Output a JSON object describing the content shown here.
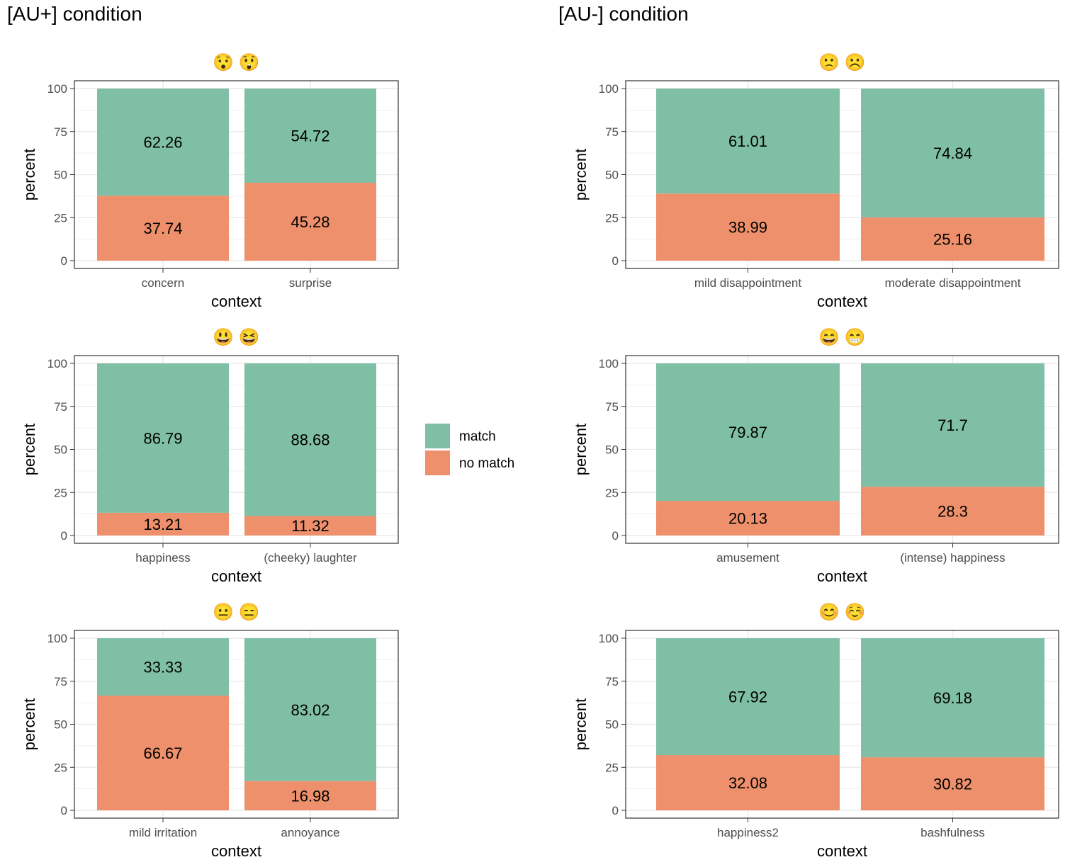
{
  "conditions": [
    {
      "title": "[AU+] condition"
    },
    {
      "title": "[AU-] condition"
    }
  ],
  "legend": {
    "entries": [
      {
        "label": "match",
        "color": "#7fbfa5"
      },
      {
        "label": "no match",
        "color": "#ee906b"
      }
    ]
  },
  "colors": {
    "match": "#7fbfa5",
    "no_match": "#ee906b",
    "grid": "#ebebeb",
    "panel_border": "#333333"
  },
  "chart_data": [
    {
      "type": "bar",
      "stacked": true,
      "condition": "[AU+] condition",
      "emoji_title": "😯 😲",
      "xlabel": "context",
      "ylabel": "percent",
      "ylim": [
        0,
        100
      ],
      "yticks": [
        "0",
        "25",
        "50",
        "75",
        "100"
      ],
      "categories": [
        "concern",
        "surprise"
      ],
      "series": [
        {
          "name": "match",
          "values": [
            62.26,
            54.72
          ]
        },
        {
          "name": "no match",
          "values": [
            37.74,
            45.28
          ]
        }
      ]
    },
    {
      "type": "bar",
      "stacked": true,
      "condition": "[AU-] condition",
      "emoji_title": "🙁 ☹️",
      "xlabel": "context",
      "ylabel": "percent",
      "ylim": [
        0,
        100
      ],
      "yticks": [
        "0",
        "25",
        "50",
        "75",
        "100"
      ],
      "categories": [
        "mild disappointment",
        "moderate disappointment"
      ],
      "series": [
        {
          "name": "match",
          "values": [
            61.01,
            74.84
          ]
        },
        {
          "name": "no match",
          "values": [
            38.99,
            25.16
          ]
        }
      ]
    },
    {
      "type": "bar",
      "stacked": true,
      "condition": "[AU+] condition",
      "emoji_title": "😃 😆",
      "xlabel": "context",
      "ylabel": "percent",
      "ylim": [
        0,
        100
      ],
      "yticks": [
        "0",
        "25",
        "50",
        "75",
        "100"
      ],
      "categories": [
        "happiness",
        "(cheeky) laughter"
      ],
      "series": [
        {
          "name": "match",
          "values": [
            86.79,
            88.68
          ]
        },
        {
          "name": "no match",
          "values": [
            13.21,
            11.32
          ]
        }
      ]
    },
    {
      "type": "bar",
      "stacked": true,
      "condition": "[AU-] condition",
      "emoji_title": "😄 😁",
      "xlabel": "context",
      "ylabel": "percent",
      "ylim": [
        0,
        100
      ],
      "yticks": [
        "0",
        "25",
        "50",
        "75",
        "100"
      ],
      "categories": [
        "amusement",
        "(intense) happiness"
      ],
      "series": [
        {
          "name": "match",
          "values": [
            79.87,
            71.7
          ]
        },
        {
          "name": "no match",
          "values": [
            20.13,
            28.3
          ]
        }
      ]
    },
    {
      "type": "bar",
      "stacked": true,
      "condition": "[AU+] condition",
      "emoji_title": "😐 😑",
      "xlabel": "context",
      "ylabel": "percent",
      "ylim": [
        0,
        100
      ],
      "yticks": [
        "0",
        "25",
        "50",
        "75",
        "100"
      ],
      "categories": [
        "mild irritation",
        "annoyance"
      ],
      "series": [
        {
          "name": "match",
          "values": [
            33.33,
            83.02
          ]
        },
        {
          "name": "no match",
          "values": [
            66.67,
            16.98
          ]
        }
      ]
    },
    {
      "type": "bar",
      "stacked": true,
      "condition": "[AU-] condition",
      "emoji_title": "😊 ☺️",
      "xlabel": "context",
      "ylabel": "percent",
      "ylim": [
        0,
        100
      ],
      "yticks": [
        "0",
        "25",
        "50",
        "75",
        "100"
      ],
      "categories": [
        "happiness2",
        "bashfulness"
      ],
      "series": [
        {
          "name": "match",
          "values": [
            67.92,
            69.18
          ]
        },
        {
          "name": "no match",
          "values": [
            32.08,
            30.82
          ]
        }
      ]
    }
  ]
}
